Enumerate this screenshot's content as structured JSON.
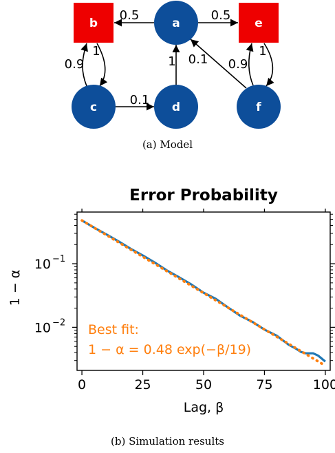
{
  "model": {
    "caption": "(a) Model",
    "nodes": [
      {
        "id": "a",
        "label": "a",
        "shape": "circle"
      },
      {
        "id": "b",
        "label": "b",
        "shape": "square"
      },
      {
        "id": "c",
        "label": "c",
        "shape": "circle"
      },
      {
        "id": "d",
        "label": "d",
        "shape": "circle"
      },
      {
        "id": "e",
        "label": "e",
        "shape": "square"
      },
      {
        "id": "f",
        "label": "f",
        "shape": "circle"
      }
    ],
    "edges": [
      {
        "from": "a",
        "to": "b",
        "label": "0.5"
      },
      {
        "from": "a",
        "to": "e",
        "label": "0.5"
      },
      {
        "from": "b",
        "to": "c",
        "label": "1"
      },
      {
        "from": "c",
        "to": "b",
        "label": "0.9"
      },
      {
        "from": "c",
        "to": "d",
        "label": "0.1"
      },
      {
        "from": "d",
        "to": "a",
        "label": "1"
      },
      {
        "from": "f",
        "to": "a",
        "label": "0.1"
      },
      {
        "from": "f",
        "to": "e",
        "label": "0.9"
      },
      {
        "from": "e",
        "to": "f",
        "label": "1"
      }
    ],
    "colors": {
      "circle": "#0d4e9a",
      "square": "#ee0000",
      "label": "#ffffff"
    }
  },
  "chart_data": {
    "type": "line",
    "title": "Error Probability",
    "xlabel": "Lag, β",
    "ylabel": "1 − α",
    "xlim": [
      -2,
      102
    ],
    "ylim": [
      0.0021,
      0.65
    ],
    "yscale": "log",
    "xticks": [
      0,
      25,
      50,
      75,
      100
    ],
    "xtick_labels": [
      "0",
      "25",
      "50",
      "75",
      "100"
    ],
    "yticks": [
      0.1,
      0.01
    ],
    "ytick_labels_base": [
      "10",
      "10"
    ],
    "ytick_labels_exp": [
      "−1",
      "−2"
    ],
    "grid": false,
    "series": [
      {
        "color": "#1f77b4",
        "style": "solid",
        "x": [
          0,
          5,
          10,
          15,
          20,
          25,
          30,
          35,
          40,
          45,
          50,
          55,
          60,
          65,
          70,
          75,
          80,
          85,
          88,
          90,
          92,
          95,
          97,
          100
        ],
        "y": [
          0.48,
          0.37,
          0.29,
          0.225,
          0.172,
          0.135,
          0.104,
          0.078,
          0.061,
          0.047,
          0.035,
          0.028,
          0.0205,
          0.0152,
          0.0122,
          0.0092,
          0.0074,
          0.0053,
          0.0046,
          0.0041,
          0.0039,
          0.0039,
          0.0036,
          0.0029
        ]
      },
      {
        "color": "#ff7f0e",
        "style": "dotted",
        "x": [
          0,
          100
        ],
        "y": [
          0.48,
          0.00249
        ]
      }
    ],
    "annotation_line1": "Best fit:",
    "annotation_line2": "1 − α = 0.48 exp(−β/19)",
    "annotation_color": "#ff7f0e"
  },
  "results_caption": "(b) Simulation results"
}
